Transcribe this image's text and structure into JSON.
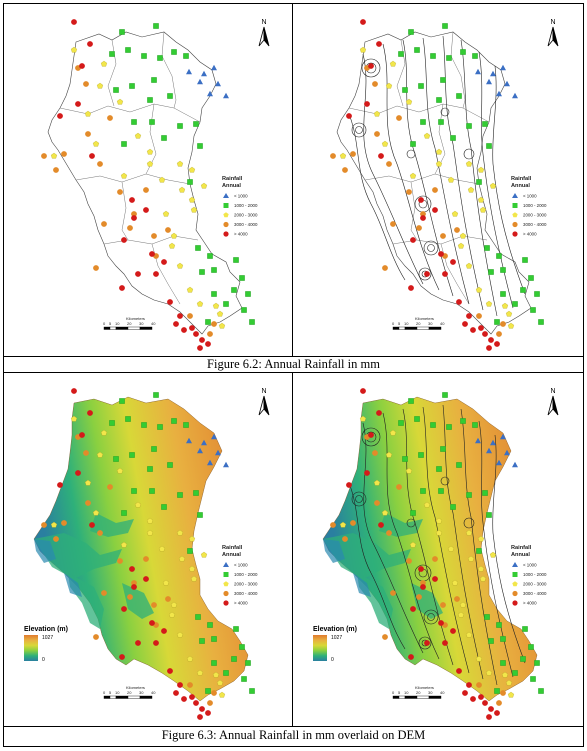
{
  "captions": {
    "fig62": "Figure 6.2: Annual Rainfall in mm",
    "fig63": "Figure 6.3: Annual Rainfall in mm overlaid on DEM"
  },
  "legend": {
    "title_line1": "Rainfall",
    "title_line2": "Annual",
    "classes": [
      {
        "label": "< 1000",
        "symbol": "triangle",
        "color": "#3b6fc4"
      },
      {
        "label": "1000 - 2000",
        "symbol": "square",
        "color": "#33cc33"
      },
      {
        "label": "2000 - 3000",
        "symbol": "pentagon",
        "color": "#f2e64a"
      },
      {
        "label": "3000 - 4000",
        "symbol": "circle",
        "color": "#e38b2a"
      },
      {
        "label": "> 4000",
        "symbol": "circle",
        "color": "#d41a1a"
      }
    ]
  },
  "north_label": "N",
  "scalebar": {
    "unit_label": "Kilometers",
    "ticks": [
      "0",
      "5",
      "10",
      "20",
      "30",
      "40"
    ]
  },
  "elevation_legend": {
    "title": "Elevation (m)",
    "max": "1027",
    "min": "0",
    "colors": [
      "#e07a2e",
      "#e8b040",
      "#d8d838",
      "#8ad040",
      "#2eb07a",
      "#2a7fa0"
    ]
  }
}
